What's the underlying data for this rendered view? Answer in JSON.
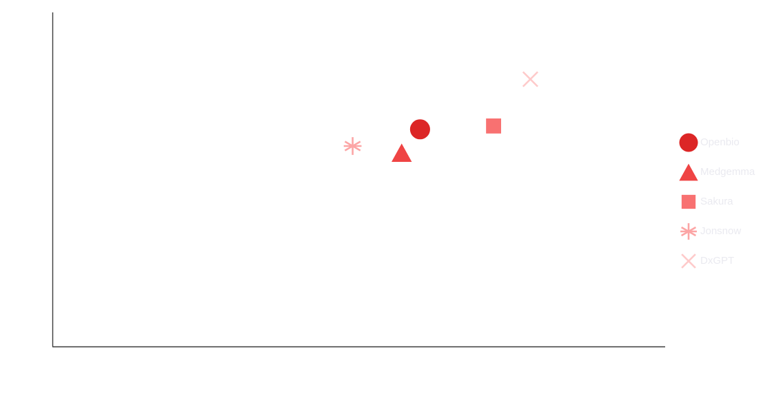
{
  "chart_data": {
    "type": "scatter",
    "title": "",
    "xlabel": "",
    "ylabel": "",
    "xlim": [
      0,
      10
    ],
    "ylim": [
      0,
      10
    ],
    "grid": false,
    "legend_position": "right",
    "series": [
      {
        "name": "Openbio",
        "marker": "circle",
        "color": "#dc2626",
        "x": [
          6.0
        ],
        "y": [
          6.5
        ]
      },
      {
        "name": "Medgemma",
        "marker": "triangle",
        "color": "#ef4444",
        "x": [
          5.7
        ],
        "y": [
          5.8
        ]
      },
      {
        "name": "Sakura",
        "marker": "square",
        "color": "#f87171",
        "x": [
          7.2
        ],
        "y": [
          6.6
        ]
      },
      {
        "name": "Jonsnow",
        "marker": "asterisk",
        "color": "#fca5a5",
        "x": [
          4.9
        ],
        "y": [
          6.0
        ]
      },
      {
        "name": "DxGPT",
        "marker": "cross",
        "color": "#fecaca",
        "x": [
          7.8
        ],
        "y": [
          8.0
        ]
      }
    ]
  }
}
